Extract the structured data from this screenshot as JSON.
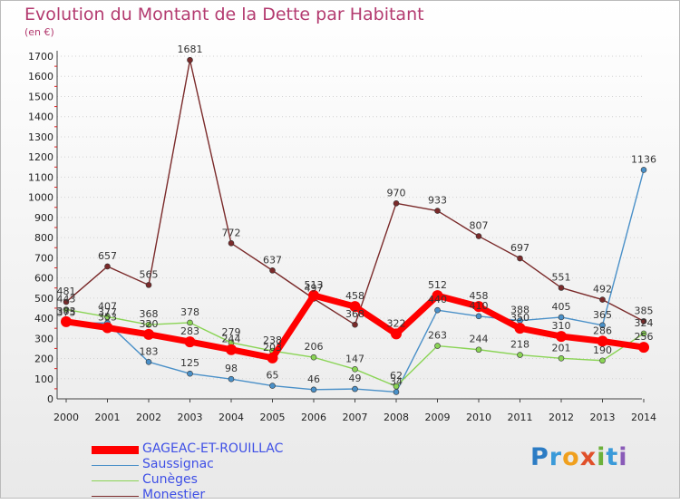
{
  "title": "Evolution du Montant de la Dette par Habitant",
  "unit_label": "(en €)",
  "logo_text": "Proxiti",
  "chart_data": {
    "type": "line",
    "title": "Evolution du Montant de la Dette par Habitant",
    "ylabel": "(en €)",
    "xlabel": "",
    "ylim": [
      0,
      1700
    ],
    "yticks": [
      0,
      100,
      200,
      300,
      400,
      500,
      600,
      700,
      800,
      900,
      1000,
      1100,
      1200,
      1300,
      1400,
      1500,
      1600,
      1700
    ],
    "categories": [
      "2000",
      "2001",
      "2002",
      "2003",
      "2004",
      "2005",
      "2006",
      "2007",
      "2008",
      "2009",
      "2010",
      "2011",
      "2012",
      "2013",
      "2014"
    ],
    "legend_position": "bottom-left",
    "series": [
      {
        "name": "Monestier",
        "color": "#7a2a2a",
        "values": [
          481,
          657,
          565,
          1681,
          772,
          637,
          497,
          368,
          970,
          933,
          807,
          697,
          551,
          492,
          385
        ]
      },
      {
        "name": "Saussignac",
        "color": "#4a90c8",
        "values": [
          375,
          377,
          183,
          125,
          98,
          65,
          46,
          49,
          34,
          440,
          410,
          388,
          405,
          365,
          1136
        ]
      },
      {
        "name": "Cunèges",
        "color": "#8ad455",
        "values": [
          443,
          407,
          368,
          378,
          279,
          238,
          206,
          147,
          62,
          263,
          244,
          218,
          201,
          190,
          324
        ]
      },
      {
        "name": "GAGEAC-ET-ROUILLAC",
        "color": "#ff0000",
        "values": [
          383,
          353,
          320,
          283,
          244,
          203,
          513,
          458,
          322,
          512,
          458,
          350,
          310,
          286,
          256
        ]
      }
    ],
    "legend_order": [
      "GAGEAC-ET-ROUILLAC",
      "Saussignac",
      "Cunèges",
      "Monestier"
    ]
  }
}
